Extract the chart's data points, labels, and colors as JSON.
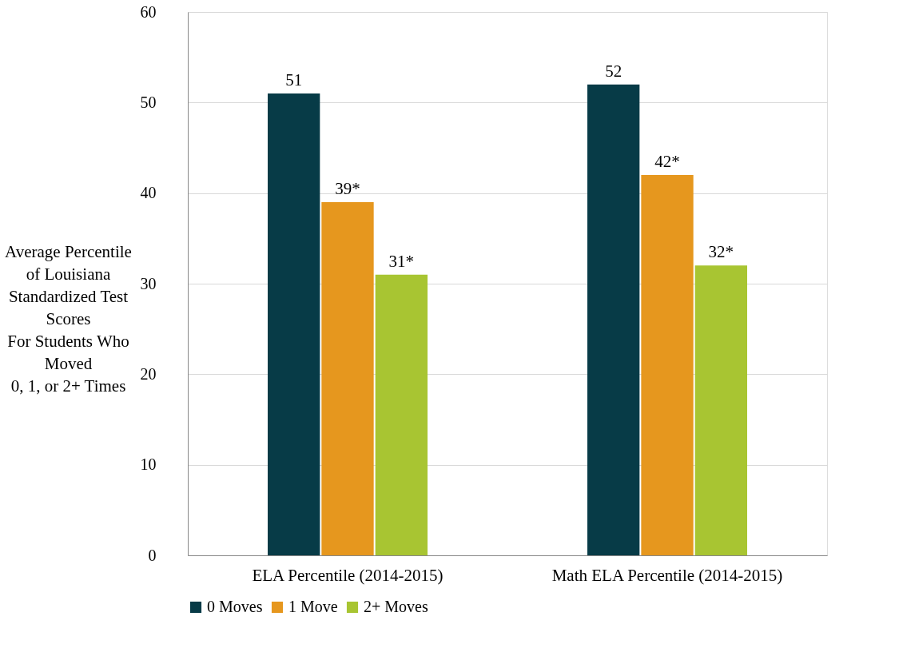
{
  "chart_data": {
    "type": "bar",
    "ylabel": "Average Percentile\nof Louisiana\nStandardized Test\nScores\nFor Students Who\nMoved\n0, 1, or 2+ Times",
    "categories": [
      "ELA Percentile (2014-2015)",
      "Math ELA Percentile (2014-2015)"
    ],
    "series": [
      {
        "name": "0 Moves",
        "color": "#073b47",
        "values": [
          51,
          52
        ],
        "value_labels": [
          "51",
          "52"
        ]
      },
      {
        "name": "1 Move",
        "color": "#e6971e",
        "values": [
          39,
          42
        ],
        "value_labels": [
          "39*",
          "42*"
        ]
      },
      {
        "name": "2+ Moves",
        "color": "#a8c532",
        "values": [
          31,
          32
        ],
        "value_labels": [
          "31*",
          "32*"
        ]
      }
    ],
    "ylim": [
      0,
      60
    ],
    "yticks": [
      0,
      10,
      20,
      30,
      40,
      50,
      60
    ],
    "grid": "y",
    "legend": "bottom"
  }
}
